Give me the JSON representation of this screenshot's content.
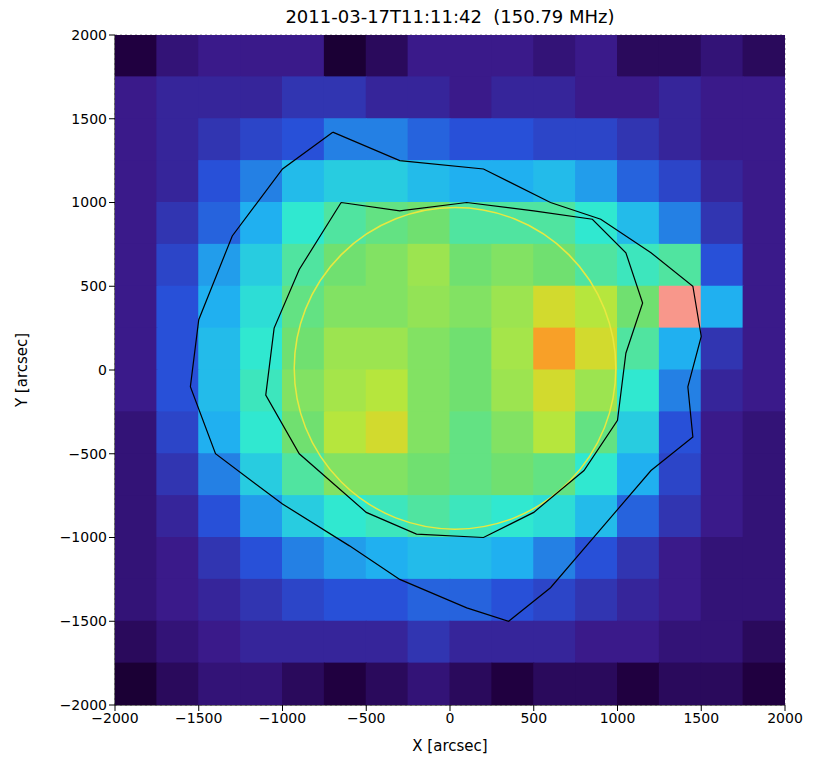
{
  "chart_data": {
    "type": "heatmap",
    "title": "2011-03-17T11:11:42  (150.79 MHz)",
    "x_label": "X [arcsec]",
    "y_label": "Y [arcsec]",
    "xlim": [
      -2000,
      2000
    ],
    "ylim": [
      -2000,
      2000
    ],
    "xticks": [
      {
        "value": -2000,
        "label": "−2000"
      },
      {
        "value": -1500,
        "label": "−1500"
      },
      {
        "value": -1000,
        "label": "−1000"
      },
      {
        "value": -500,
        "label": "−500"
      },
      0,
      500,
      1000,
      1500,
      2000
    ],
    "yticks": [
      {
        "value": -2000,
        "label": "−2000"
      },
      {
        "value": -1500,
        "label": "−1500"
      },
      {
        "value": -1000,
        "label": "−1000"
      },
      {
        "value": -500,
        "label": "−500"
      },
      0,
      500,
      1000,
      1500,
      2000
    ],
    "grid": true,
    "tick_labels": true,
    "zlim": [
      0,
      1
    ],
    "cells": {
      "x": [
        -1875,
        -1625,
        -1375,
        -1125,
        -875,
        -625,
        -375,
        -125,
        125,
        375,
        625,
        875,
        1125,
        1375,
        1625,
        1875
      ],
      "y": [
        1875,
        1625,
        1375,
        1125,
        875,
        625,
        375,
        125,
        -125,
        -375,
        -625,
        -875,
        -1125,
        -1375,
        -1625,
        -1875
      ],
      "values": [
        [
          0.12,
          0.18,
          0.2,
          0.2,
          0.2,
          0.1,
          0.15,
          0.2,
          0.2,
          0.2,
          0.18,
          0.2,
          0.15,
          0.15,
          0.18,
          0.15
        ],
        [
          0.2,
          0.22,
          0.22,
          0.22,
          0.25,
          0.25,
          0.22,
          0.22,
          0.2,
          0.22,
          0.22,
          0.2,
          0.2,
          0.22,
          0.2,
          0.2
        ],
        [
          0.2,
          0.22,
          0.25,
          0.28,
          0.3,
          0.35,
          0.35,
          0.32,
          0.3,
          0.3,
          0.28,
          0.28,
          0.25,
          0.22,
          0.2,
          0.2
        ],
        [
          0.2,
          0.22,
          0.3,
          0.35,
          0.42,
          0.45,
          0.45,
          0.42,
          0.4,
          0.4,
          0.42,
          0.38,
          0.32,
          0.28,
          0.22,
          0.2
        ],
        [
          0.2,
          0.25,
          0.32,
          0.4,
          0.5,
          0.55,
          0.58,
          0.6,
          0.55,
          0.55,
          0.55,
          0.5,
          0.42,
          0.35,
          0.25,
          0.2
        ],
        [
          0.2,
          0.28,
          0.38,
          0.45,
          0.55,
          0.6,
          0.62,
          0.65,
          0.6,
          0.62,
          0.6,
          0.55,
          0.52,
          0.55,
          0.3,
          0.2
        ],
        [
          0.2,
          0.3,
          0.4,
          0.48,
          0.58,
          0.62,
          0.62,
          0.64,
          0.62,
          0.65,
          0.72,
          0.68,
          0.6,
          0.95,
          0.4,
          0.2
        ],
        [
          0.2,
          0.3,
          0.42,
          0.5,
          0.6,
          0.65,
          0.65,
          0.62,
          0.6,
          0.66,
          0.8,
          0.72,
          0.55,
          0.4,
          0.25,
          0.2
        ],
        [
          0.2,
          0.3,
          0.42,
          0.52,
          0.62,
          0.66,
          0.68,
          0.62,
          0.6,
          0.65,
          0.72,
          0.65,
          0.5,
          0.35,
          0.22,
          0.2
        ],
        [
          0.18,
          0.28,
          0.4,
          0.5,
          0.6,
          0.68,
          0.72,
          0.62,
          0.58,
          0.62,
          0.68,
          0.58,
          0.45,
          0.3,
          0.2,
          0.18
        ],
        [
          0.18,
          0.25,
          0.35,
          0.45,
          0.55,
          0.62,
          0.62,
          0.6,
          0.58,
          0.6,
          0.58,
          0.5,
          0.4,
          0.28,
          0.2,
          0.18
        ],
        [
          0.18,
          0.22,
          0.3,
          0.38,
          0.45,
          0.5,
          0.52,
          0.55,
          0.52,
          0.5,
          0.48,
          0.42,
          0.32,
          0.25,
          0.2,
          0.18
        ],
        [
          0.18,
          0.2,
          0.25,
          0.3,
          0.35,
          0.38,
          0.4,
          0.42,
          0.42,
          0.4,
          0.35,
          0.3,
          0.25,
          0.2,
          0.18,
          0.18
        ],
        [
          0.18,
          0.2,
          0.22,
          0.25,
          0.28,
          0.3,
          0.3,
          0.32,
          0.32,
          0.3,
          0.28,
          0.25,
          0.22,
          0.2,
          0.18,
          0.18
        ],
        [
          0.15,
          0.18,
          0.2,
          0.22,
          0.22,
          0.22,
          0.22,
          0.25,
          0.22,
          0.22,
          0.22,
          0.2,
          0.2,
          0.18,
          0.18,
          0.15
        ],
        [
          0.1,
          0.15,
          0.18,
          0.18,
          0.15,
          0.12,
          0.15,
          0.18,
          0.15,
          0.12,
          0.15,
          0.15,
          0.12,
          0.15,
          0.15,
          0.12
        ]
      ]
    },
    "contours": [
      {
        "color": "#000000",
        "x": [
          -700,
          -300,
          200,
          600,
          900,
          1200,
          1450,
          1500,
          1420,
          1450,
          1200,
          900,
          600,
          350,
          100,
          -300,
          -600,
          -1000,
          -1400,
          -1550,
          -1500,
          -1300,
          -1000,
          -700
        ],
        "y": [
          1420,
          1250,
          1200,
          1000,
          900,
          700,
          500,
          200,
          -100,
          -400,
          -600,
          -950,
          -1300,
          -1500,
          -1420,
          -1250,
          -1050,
          -800,
          -500,
          -100,
          300,
          800,
          1200,
          1420
        ]
      },
      {
        "color": "#000000",
        "x": [
          -650,
          -300,
          100,
          500,
          850,
          1050,
          1150,
          1050,
          1000,
          800,
          500,
          200,
          -200,
          -500,
          -900,
          -1100,
          -1050,
          -900,
          -650
        ],
        "y": [
          1000,
          950,
          1000,
          950,
          900,
          700,
          400,
          100,
          -300,
          -600,
          -850,
          -1000,
          -980,
          -850,
          -500,
          -150,
          250,
          600,
          1000
        ]
      }
    ],
    "solar_disk": {
      "center": [
        30,
        10
      ],
      "radius": 960,
      "color": "#e8e840"
    }
  }
}
